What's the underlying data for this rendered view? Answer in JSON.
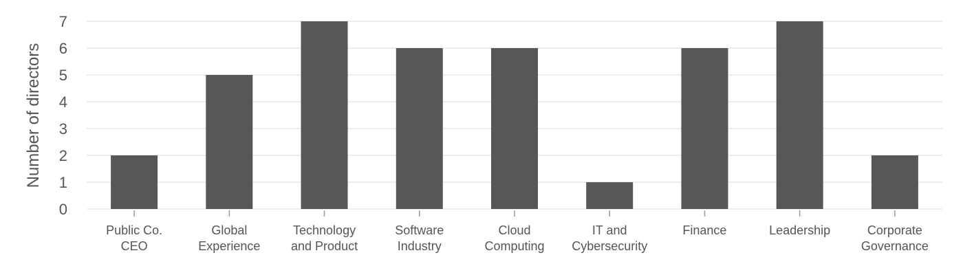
{
  "chart_data": {
    "type": "bar",
    "title": "",
    "xlabel": "",
    "ylabel": "Number of directors",
    "categories": [
      [
        "Public Co.",
        "CEO"
      ],
      [
        "Global",
        "Experience"
      ],
      [
        "Technology",
        "and Product"
      ],
      [
        "Software",
        "Industry"
      ],
      [
        "Cloud",
        "Computing"
      ],
      [
        "IT and",
        "Cybersecurity"
      ],
      [
        "Finance"
      ],
      [
        "Leadership"
      ],
      [
        "Corporate",
        "Governance"
      ]
    ],
    "values": [
      2,
      5,
      7,
      6,
      6,
      1,
      6,
      7,
      2
    ],
    "ylim": [
      0,
      7
    ],
    "yticks": [
      0,
      1,
      2,
      3,
      4,
      5,
      6,
      7
    ],
    "grid": true,
    "bar_color": "#575757"
  }
}
